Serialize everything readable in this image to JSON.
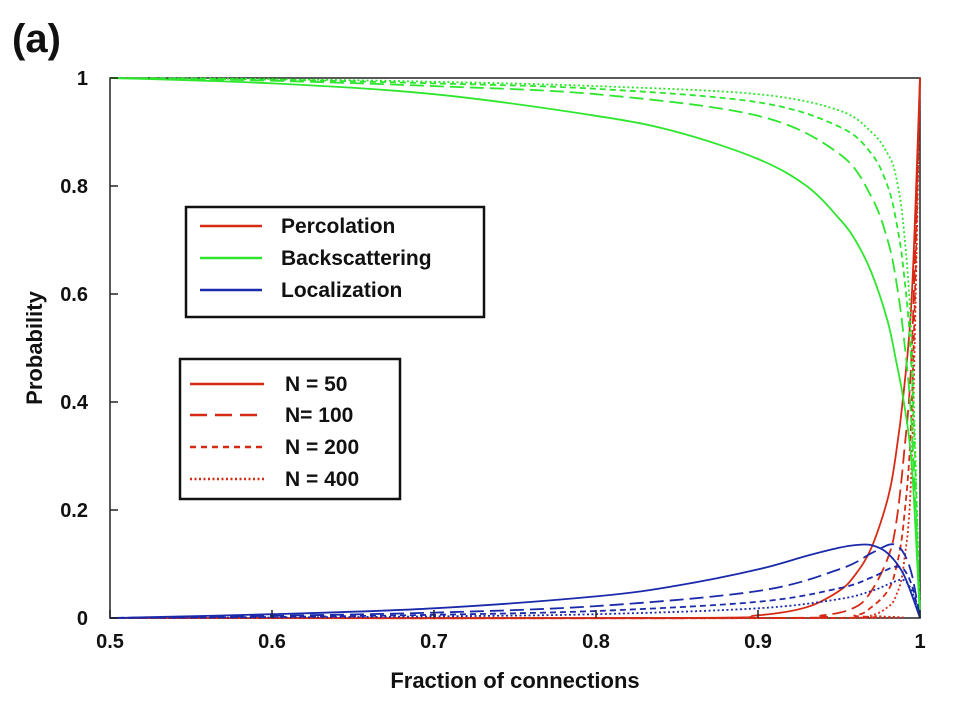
{
  "chart_data": {
    "type": "line",
    "panel_label": "(a)",
    "xlabel": "Fraction of connections",
    "ylabel": "Probability",
    "xlim": [
      0.5,
      1.0
    ],
    "ylim": [
      0,
      1.0
    ],
    "xticks": [
      "0.5",
      "0.6",
      "0.7",
      "0.8",
      "0.9",
      "1"
    ],
    "yticks": [
      "0",
      "0.2",
      "0.4",
      "0.6",
      "0.8",
      "1"
    ],
    "grid": false,
    "legend_quantity": [
      {
        "label": "Percolation",
        "color": "#d62a14"
      },
      {
        "label": "Backscattering",
        "color": "#2ee62e"
      },
      {
        "label": "Localization",
        "color": "#1a2aaa"
      }
    ],
    "legend_size": [
      {
        "label": "N = 50",
        "style": "solid"
      },
      {
        "label": "N= 100",
        "style": "dashed"
      },
      {
        "label": "N = 200",
        "style": "short-dashed"
      },
      {
        "label": "N = 400",
        "style": "dotted"
      }
    ],
    "series": [
      {
        "quantity": "Percolation",
        "N": 50,
        "x": [
          0.5,
          0.85,
          0.9,
          0.93,
          0.95,
          0.96,
          0.97,
          0.98,
          0.985,
          0.99,
          0.995,
          1.0
        ],
        "y": [
          0,
          0,
          0.005,
          0.02,
          0.05,
          0.08,
          0.13,
          0.22,
          0.3,
          0.42,
          0.6,
          1.0
        ]
      },
      {
        "quantity": "Percolation",
        "N": 100,
        "x": [
          0.5,
          0.9,
          0.94,
          0.96,
          0.97,
          0.98,
          0.985,
          0.99,
          0.995,
          1.0
        ],
        "y": [
          0,
          0,
          0.005,
          0.02,
          0.05,
          0.11,
          0.17,
          0.3,
          0.5,
          1.0
        ]
      },
      {
        "quantity": "Percolation",
        "N": 200,
        "x": [
          0.5,
          0.93,
          0.96,
          0.97,
          0.98,
          0.985,
          0.99,
          0.995,
          1.0
        ],
        "y": [
          0,
          0,
          0.005,
          0.02,
          0.05,
          0.09,
          0.18,
          0.4,
          1.0
        ]
      },
      {
        "quantity": "Percolation",
        "N": 400,
        "x": [
          0.5,
          0.95,
          0.97,
          0.98,
          0.985,
          0.99,
          0.995,
          1.0
        ],
        "y": [
          0,
          0,
          0.005,
          0.02,
          0.04,
          0.1,
          0.3,
          1.0
        ]
      },
      {
        "quantity": "Backscattering",
        "N": 50,
        "x": [
          0.5,
          0.6,
          0.7,
          0.8,
          0.85,
          0.9,
          0.93,
          0.95,
          0.96,
          0.97,
          0.98,
          0.985,
          0.99,
          0.995,
          1.0
        ],
        "y": [
          1.0,
          0.99,
          0.97,
          0.93,
          0.9,
          0.85,
          0.8,
          0.74,
          0.7,
          0.64,
          0.55,
          0.48,
          0.4,
          0.28,
          0.0
        ]
      },
      {
        "quantity": "Backscattering",
        "N": 100,
        "x": [
          0.5,
          0.6,
          0.7,
          0.8,
          0.9,
          0.95,
          0.97,
          0.98,
          0.985,
          0.99,
          0.995,
          1.0
        ],
        "y": [
          1.0,
          0.995,
          0.985,
          0.97,
          0.93,
          0.86,
          0.78,
          0.7,
          0.63,
          0.52,
          0.35,
          0.0
        ]
      },
      {
        "quantity": "Backscattering",
        "N": 200,
        "x": [
          0.5,
          0.6,
          0.7,
          0.8,
          0.9,
          0.95,
          0.97,
          0.98,
          0.985,
          0.99,
          0.995,
          1.0
        ],
        "y": [
          1.0,
          0.997,
          0.99,
          0.98,
          0.955,
          0.91,
          0.86,
          0.8,
          0.74,
          0.64,
          0.45,
          0.0
        ]
      },
      {
        "quantity": "Backscattering",
        "N": 400,
        "x": [
          0.5,
          0.6,
          0.7,
          0.8,
          0.9,
          0.95,
          0.97,
          0.98,
          0.985,
          0.99,
          0.995,
          1.0
        ],
        "y": [
          1.0,
          0.998,
          0.993,
          0.985,
          0.97,
          0.94,
          0.9,
          0.86,
          0.82,
          0.72,
          0.5,
          0.0
        ]
      },
      {
        "quantity": "Localization",
        "N": 50,
        "x": [
          0.5,
          0.6,
          0.7,
          0.8,
          0.85,
          0.9,
          0.93,
          0.95,
          0.96,
          0.97,
          0.98,
          0.99,
          1.0
        ],
        "y": [
          0.0,
          0.007,
          0.018,
          0.04,
          0.06,
          0.09,
          0.115,
          0.13,
          0.135,
          0.135,
          0.12,
          0.08,
          0.0
        ]
      },
      {
        "quantity": "Localization",
        "N": 100,
        "x": [
          0.5,
          0.6,
          0.7,
          0.8,
          0.9,
          0.95,
          0.97,
          0.98,
          0.985,
          0.99,
          0.995,
          1.0
        ],
        "y": [
          0.0,
          0.004,
          0.01,
          0.022,
          0.05,
          0.09,
          0.12,
          0.135,
          0.135,
          0.12,
          0.08,
          0.0
        ]
      },
      {
        "quantity": "Localization",
        "N": 200,
        "x": [
          0.5,
          0.6,
          0.7,
          0.8,
          0.9,
          0.95,
          0.97,
          0.98,
          0.985,
          0.99,
          0.995,
          1.0
        ],
        "y": [
          0.0,
          0.002,
          0.006,
          0.013,
          0.03,
          0.055,
          0.075,
          0.09,
          0.095,
          0.09,
          0.06,
          0.0
        ]
      },
      {
        "quantity": "Localization",
        "N": 400,
        "x": [
          0.5,
          0.6,
          0.7,
          0.8,
          0.9,
          0.95,
          0.97,
          0.98,
          0.985,
          0.99,
          0.995,
          1.0
        ],
        "y": [
          0.0,
          0.001,
          0.003,
          0.007,
          0.018,
          0.035,
          0.05,
          0.062,
          0.068,
          0.07,
          0.05,
          0.0
        ]
      }
    ]
  }
}
